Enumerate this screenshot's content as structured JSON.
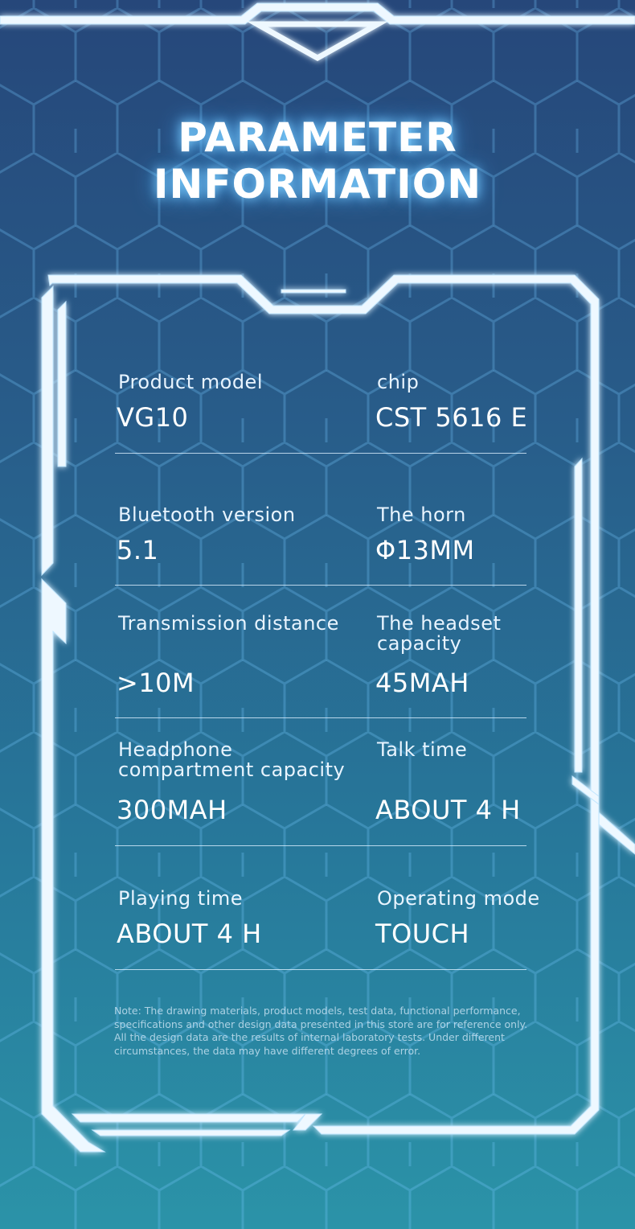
{
  "title": [
    "PARAMETER",
    "INFORMATION"
  ],
  "specs": [
    [
      {
        "label": "Product model",
        "value": "VG10"
      },
      {
        "label": "chip",
        "value": "CST 5616 E"
      }
    ],
    [
      {
        "label": "Bluetooth version",
        "value": "5.1"
      },
      {
        "label": "The horn",
        "value": "Φ13MM"
      }
    ],
    [
      {
        "label": "Transmission distance",
        "value": ">10M"
      },
      {
        "label": "The headset\ncapacity",
        "value": "45MAH"
      }
    ],
    [
      {
        "label": "Headphone\ncompartment capacity",
        "value": "300MAH"
      },
      {
        "label": "Talk time",
        "value": "ABOUT 4 H"
      }
    ],
    [
      {
        "label": "Playing time",
        "value": "ABOUT 4 H"
      },
      {
        "label": "Operating mode",
        "value": "TOUCH"
      }
    ]
  ],
  "note": [
    "Note: The drawing materials, product models, test data, functional performance,",
    "specifications and other design data presented in this store are for reference only.",
    "All the design data are the results of internal laboratory tests. Under different",
    "circumstances, the data may have different degrees of error."
  ]
}
